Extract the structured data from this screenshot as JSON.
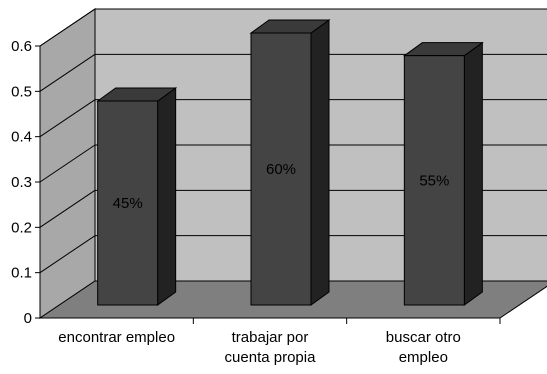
{
  "chart_data": {
    "type": "bar",
    "three_d": true,
    "categories": [
      [
        "encontrar empleo"
      ],
      [
        "trabajar por",
        "cuenta propia"
      ],
      [
        "buscar otro",
        "empleo"
      ]
    ],
    "values": [
      0.45,
      0.6,
      0.55
    ],
    "data_labels": [
      "45%",
      "60%",
      "55%"
    ],
    "yticks": [
      "0",
      "0.1",
      "0.2",
      "0.3",
      "0.4",
      "0.5",
      "0.6"
    ],
    "ylim": [
      0,
      0.6
    ],
    "grid": true,
    "title": "",
    "xlabel": "",
    "ylabel": "",
    "colors": {
      "bar_front": "#444444",
      "bar_side": "#222222",
      "bar_top": "#3a3a3a",
      "back_wall": "#c0c0c0",
      "side_wall": "#a8a8a8",
      "floor": "#7f7f7f",
      "gridline": "#000000"
    }
  }
}
